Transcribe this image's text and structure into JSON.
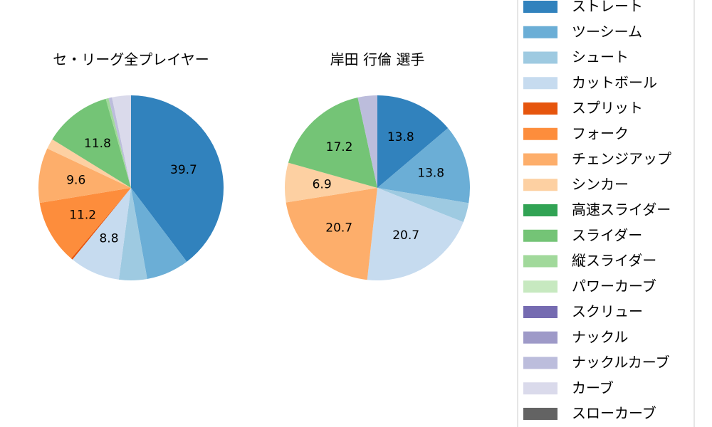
{
  "chart_data": {
    "type": "pie",
    "legend": [
      {
        "name": "ストレート",
        "color": "#3182bd"
      },
      {
        "name": "ツーシーム",
        "color": "#6baed6"
      },
      {
        "name": "シュート",
        "color": "#9ecae1"
      },
      {
        "name": "カットボール",
        "color": "#c6dbef"
      },
      {
        "name": "スプリット",
        "color": "#e6550d"
      },
      {
        "name": "フォーク",
        "color": "#fd8d3c"
      },
      {
        "name": "チェンジアップ",
        "color": "#fdae6b"
      },
      {
        "name": "シンカー",
        "color": "#fdd0a2"
      },
      {
        "name": "高速スライダー",
        "color": "#31a354"
      },
      {
        "name": "スライダー",
        "color": "#74c476"
      },
      {
        "name": "縦スライダー",
        "color": "#a1d99b"
      },
      {
        "name": "パワーカーブ",
        "color": "#c7e9c0"
      },
      {
        "name": "スクリュー",
        "color": "#756bb1"
      },
      {
        "name": "ナックル",
        "color": "#9e9ac8"
      },
      {
        "name": "ナックルカーブ",
        "color": "#bcbddc"
      },
      {
        "name": "カーブ",
        "color": "#dadaeb"
      },
      {
        "name": "スローカーブ",
        "color": "#636363"
      }
    ],
    "pies": [
      {
        "title": "セ・リーグ全プレイヤー",
        "values": [
          39.7,
          7.5,
          4.9,
          8.8,
          0.3,
          11.2,
          9.6,
          1.8,
          0,
          11.8,
          0.5,
          0,
          0,
          0,
          0.6,
          3.3,
          0
        ],
        "value_labels": [
          "39.7",
          null,
          null,
          "8.8",
          null,
          "11.2",
          "9.6",
          null,
          null,
          "11.8",
          null,
          null,
          null,
          null,
          null,
          null,
          null
        ]
      },
      {
        "title": "岸田 行倫  選手",
        "values": [
          13.8,
          13.8,
          3.4,
          20.7,
          0,
          0,
          20.7,
          6.9,
          0,
          17.2,
          0,
          0,
          0,
          0,
          3.4,
          0,
          0
        ],
        "value_labels": [
          "13.8",
          "13.8",
          null,
          "20.7",
          null,
          null,
          "20.7",
          "6.9",
          null,
          "17.2",
          null,
          null,
          null,
          null,
          null,
          null,
          null
        ]
      }
    ]
  }
}
